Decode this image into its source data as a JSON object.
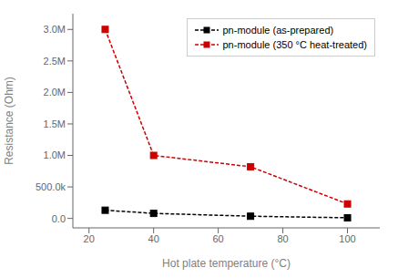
{
  "chart_data": {
    "type": "line",
    "x": [
      25,
      40,
      70,
      100
    ],
    "series": [
      {
        "name": "pn-module (as-prepared)",
        "color": "#000000",
        "values": [
          130000,
          80000,
          35000,
          10000
        ],
        "marker": "square",
        "line_style": "dashed"
      },
      {
        "name": "pn-module (350 °C heat-treated)",
        "color": "#cc0000",
        "values": [
          3000000,
          1000000,
          820000,
          230000
        ],
        "marker": "square",
        "line_style": "dashed"
      }
    ],
    "x_label": "Hot plate temperature (°C)",
    "y_label": "Resistance (Ohm)",
    "xlim": [
      15,
      110
    ],
    "ylim": [
      -150000,
      3250000
    ],
    "xticks": [
      20,
      40,
      60,
      80,
      100
    ],
    "yticks": [
      {
        "value": 0,
        "label": "0.0"
      },
      {
        "value": 500000,
        "label": "500.0k"
      },
      {
        "value": 1000000,
        "label": "1.0M"
      },
      {
        "value": 1500000,
        "label": "1.5M"
      },
      {
        "value": 2000000,
        "label": "2.0M"
      },
      {
        "value": 2500000,
        "label": "2.5M"
      },
      {
        "value": 3000000,
        "label": "3.0M"
      }
    ],
    "grid": false,
    "legend": "upper right"
  }
}
